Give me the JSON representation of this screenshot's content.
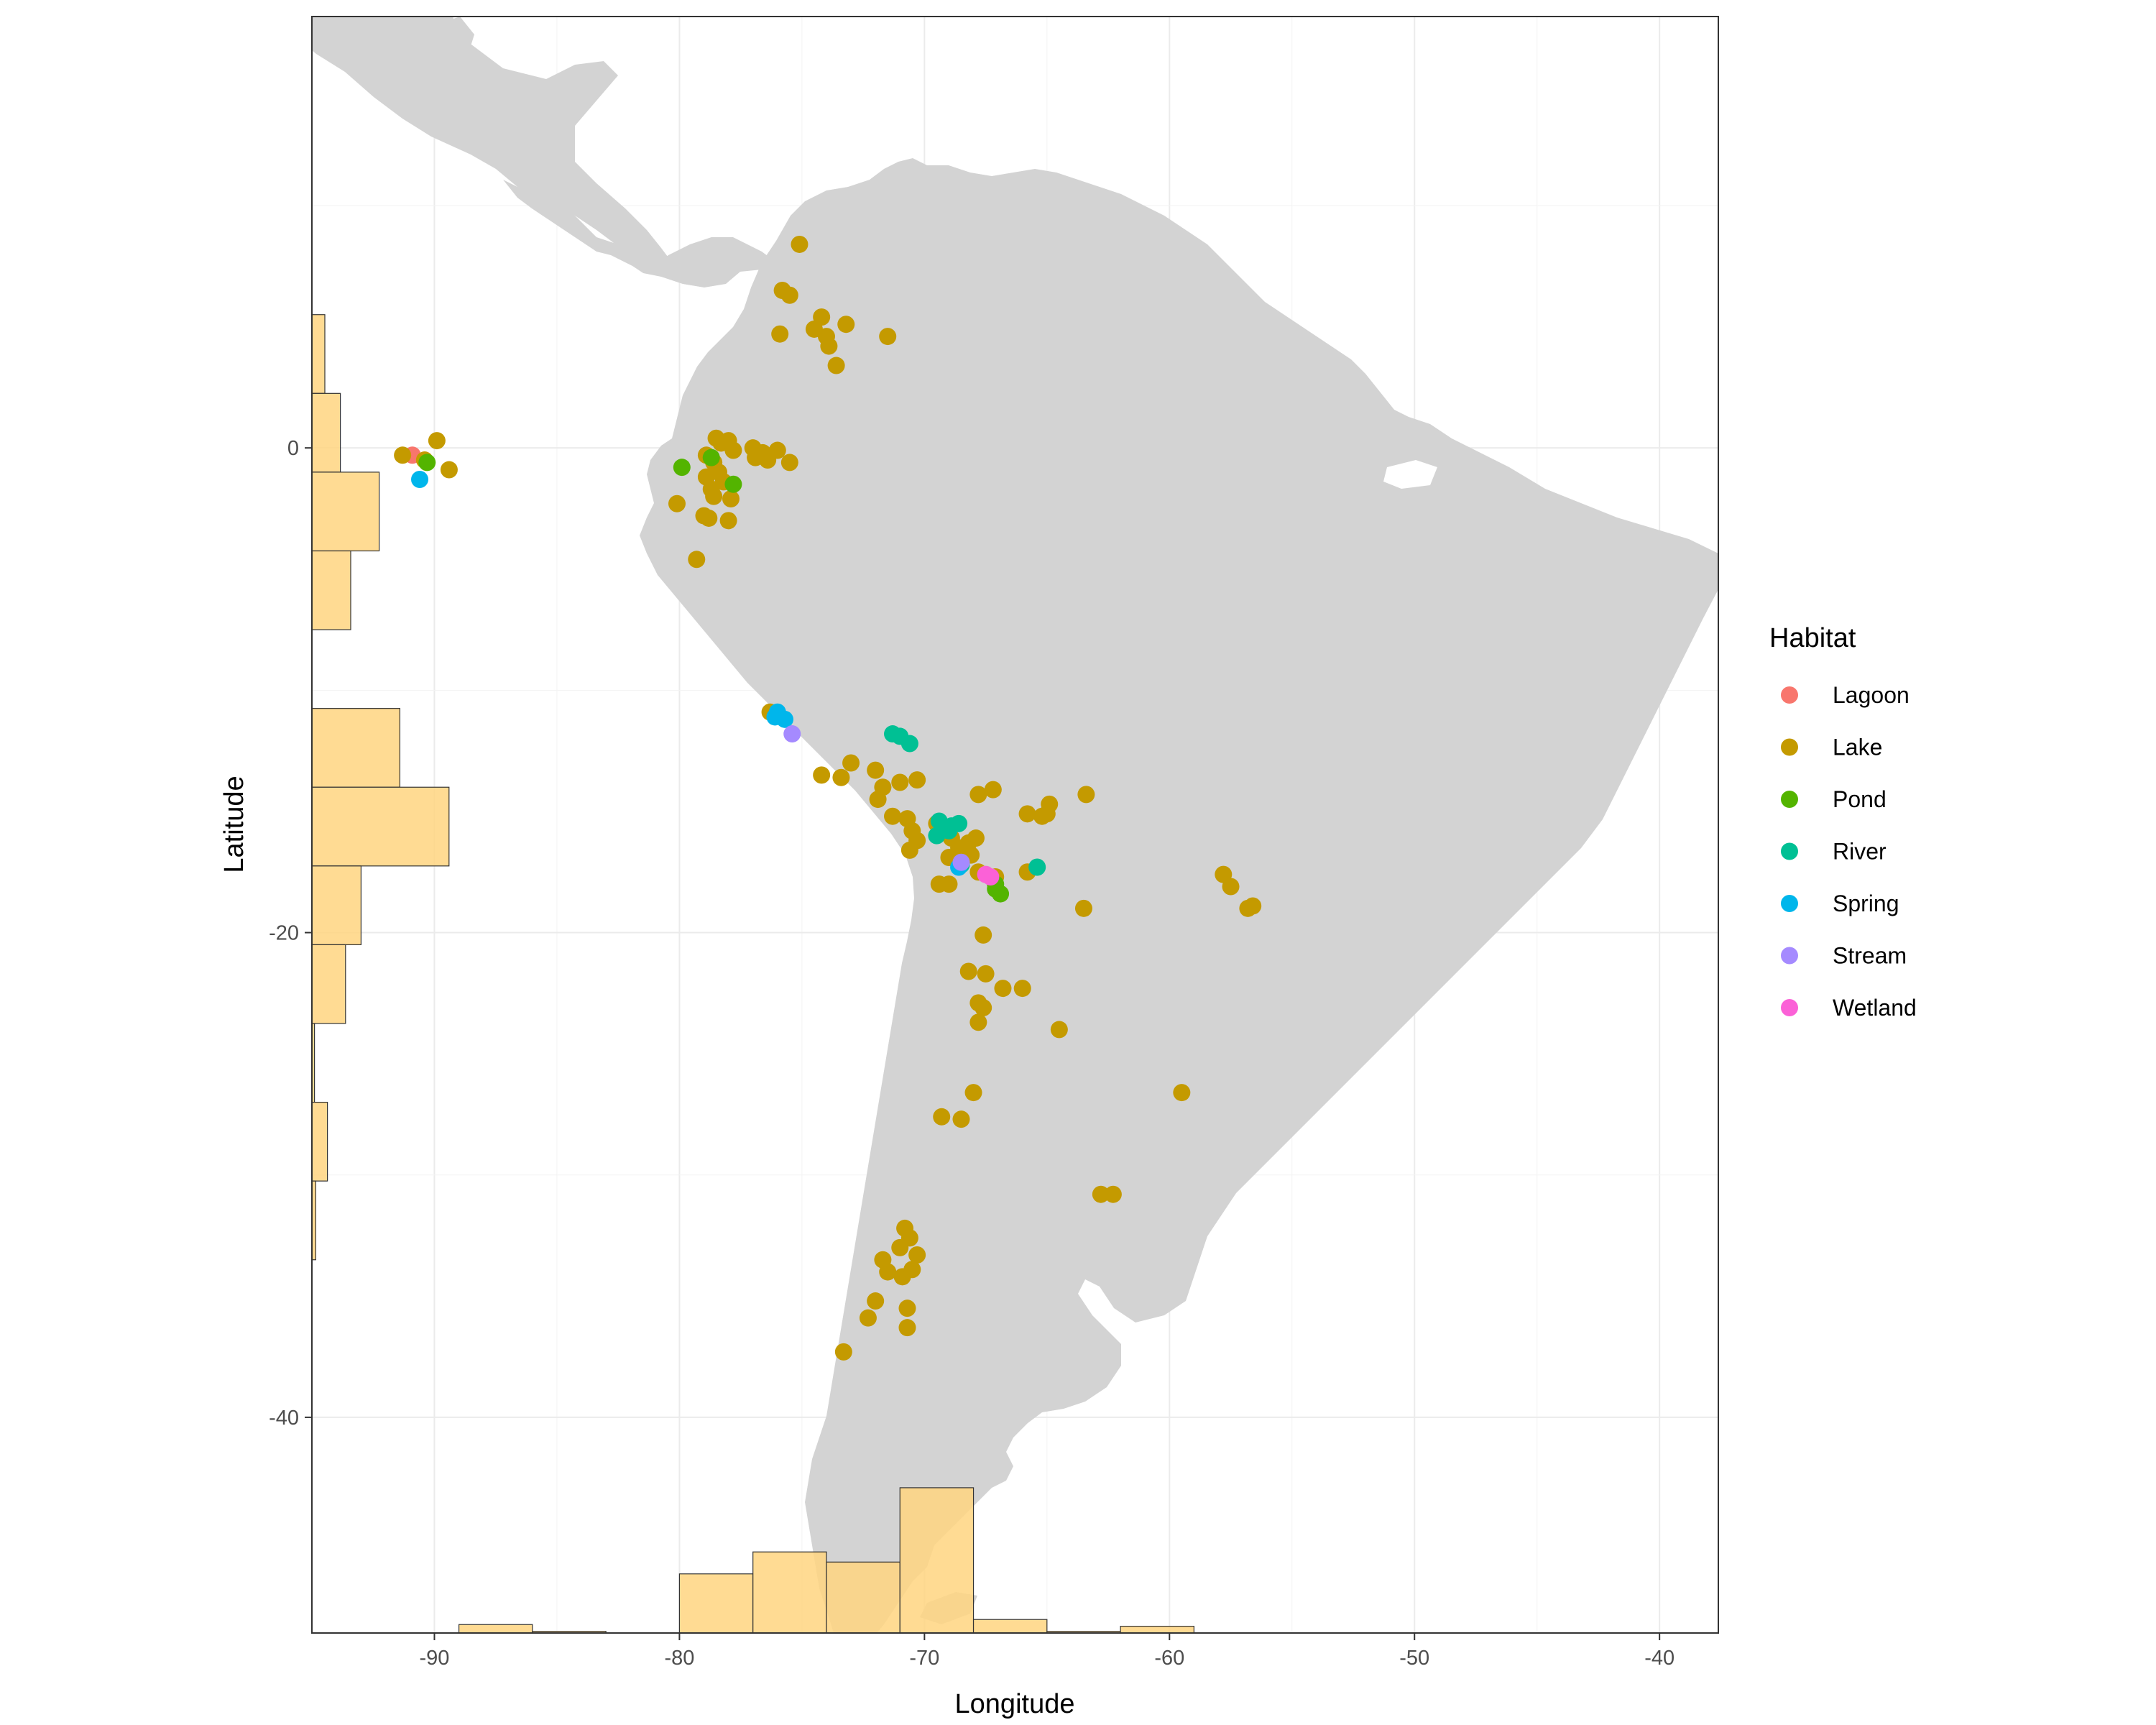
{
  "chart_data": {
    "type": "scatter",
    "title": "",
    "xlabel": "Longitude",
    "ylabel": "Latitude",
    "xlim": [
      -95,
      -37.6
    ],
    "ylim": [
      -48.9,
      17.8
    ],
    "x_ticks": [
      -90,
      -80,
      -70,
      -60,
      -50,
      -40
    ],
    "y_ticks": [
      0,
      -20,
      -40
    ],
    "x_tick_labels": [
      "-90",
      "-80",
      "-70",
      "-60",
      "-50",
      "-40"
    ],
    "y_tick_labels": [
      "0",
      "-20",
      "-40"
    ],
    "grid": true,
    "background_map": "South America and Central America landmass (light grey)",
    "legend": {
      "title": "Habitat",
      "position": "right",
      "entries": [
        {
          "name": "Lagoon",
          "color": "#F8766D"
        },
        {
          "name": "Lake",
          "color": "#C49A00"
        },
        {
          "name": "Pond",
          "color": "#53B400"
        },
        {
          "name": "River",
          "color": "#00C094"
        },
        {
          "name": "Spring",
          "color": "#00B6EB"
        },
        {
          "name": "Stream",
          "color": "#A58AFF"
        },
        {
          "name": "Wetland",
          "color": "#FB61D7"
        }
      ]
    },
    "series": [
      {
        "name": "Lagoon",
        "points": [
          [
            -90.9,
            -0.3
          ]
        ]
      },
      {
        "name": "Lake",
        "points": [
          [
            -91.3,
            -0.3
          ],
          [
            -89.9,
            0.3
          ],
          [
            -89.4,
            -0.9
          ],
          [
            -90.4,
            -0.5
          ],
          [
            -75.1,
            8.4
          ],
          [
            -75.8,
            6.5
          ],
          [
            -75.5,
            6.3
          ],
          [
            -75.9,
            4.7
          ],
          [
            -74.2,
            5.4
          ],
          [
            -74.5,
            4.9
          ],
          [
            -74.0,
            4.6
          ],
          [
            -73.2,
            5.1
          ],
          [
            -71.5,
            4.6
          ],
          [
            -73.9,
            4.2
          ],
          [
            -73.6,
            3.4
          ],
          [
            -78.5,
            0.4
          ],
          [
            -78.3,
            0.2
          ],
          [
            -78.0,
            0.3
          ],
          [
            -77.8,
            -0.1
          ],
          [
            -78.9,
            -0.3
          ],
          [
            -78.6,
            -0.6
          ],
          [
            -78.4,
            -1.0
          ],
          [
            -78.9,
            -1.2
          ],
          [
            -78.2,
            -1.4
          ],
          [
            -78.7,
            -1.7
          ],
          [
            -77.9,
            -2.1
          ],
          [
            -78.6,
            -2.0
          ],
          [
            -79.0,
            -2.8
          ],
          [
            -78.0,
            -3.0
          ],
          [
            -78.8,
            -2.9
          ],
          [
            -80.1,
            -2.3
          ],
          [
            -79.3,
            -4.6
          ],
          [
            -77.0,
            0.0
          ],
          [
            -76.6,
            -0.2
          ],
          [
            -76.0,
            -0.1
          ],
          [
            -76.4,
            -0.5
          ],
          [
            -75.5,
            -0.6
          ],
          [
            -76.9,
            -0.4
          ],
          [
            -76.3,
            -10.9
          ],
          [
            -74.2,
            -13.5
          ],
          [
            -73.4,
            -13.6
          ],
          [
            -73.0,
            -13.0
          ],
          [
            -72.0,
            -13.3
          ],
          [
            -71.7,
            -14.0
          ],
          [
            -71.0,
            -13.8
          ],
          [
            -70.3,
            -13.7
          ],
          [
            -71.9,
            -14.5
          ],
          [
            -71.3,
            -15.2
          ],
          [
            -70.7,
            -15.3
          ],
          [
            -70.5,
            -15.8
          ],
          [
            -70.3,
            -16.2
          ],
          [
            -70.6,
            -16.6
          ],
          [
            -69.5,
            -15.5
          ],
          [
            -69.2,
            -15.8
          ],
          [
            -68.9,
            -16.1
          ],
          [
            -68.6,
            -16.5
          ],
          [
            -68.2,
            -16.3
          ],
          [
            -67.9,
            -16.1
          ],
          [
            -68.1,
            -16.8
          ],
          [
            -69.0,
            -16.9
          ],
          [
            -67.8,
            -14.3
          ],
          [
            -67.2,
            -14.1
          ],
          [
            -65.8,
            -15.1
          ],
          [
            -65.2,
            -15.2
          ],
          [
            -64.9,
            -14.7
          ],
          [
            -65.0,
            -15.1
          ],
          [
            -63.4,
            -14.3
          ],
          [
            -69.4,
            -18.0
          ],
          [
            -69.0,
            -18.0
          ],
          [
            -67.8,
            -17.5
          ],
          [
            -67.1,
            -17.7
          ],
          [
            -65.8,
            -17.5
          ],
          [
            -67.6,
            -20.1
          ],
          [
            -68.2,
            -21.6
          ],
          [
            -67.5,
            -21.7
          ],
          [
            -66.0,
            -22.3
          ],
          [
            -67.8,
            -22.9
          ],
          [
            -66.8,
            -22.3
          ],
          [
            -67.6,
            -23.1
          ],
          [
            -67.8,
            -23.7
          ],
          [
            -64.5,
            -24.0
          ],
          [
            -68.0,
            -26.6
          ],
          [
            -69.3,
            -27.6
          ],
          [
            -68.5,
            -27.7
          ],
          [
            -63.5,
            -19.0
          ],
          [
            -57.8,
            -17.6
          ],
          [
            -57.5,
            -18.1
          ],
          [
            -56.8,
            -19.0
          ],
          [
            -56.6,
            -18.9
          ],
          [
            -59.5,
            -26.6
          ],
          [
            -62.8,
            -30.8
          ],
          [
            -62.3,
            -30.8
          ],
          [
            -70.8,
            -32.2
          ],
          [
            -70.6,
            -32.6
          ],
          [
            -71.0,
            -33.0
          ],
          [
            -70.3,
            -33.3
          ],
          [
            -71.7,
            -33.5
          ],
          [
            -71.5,
            -34.0
          ],
          [
            -70.9,
            -34.2
          ],
          [
            -70.5,
            -33.9
          ],
          [
            -72.0,
            -35.2
          ],
          [
            -70.7,
            -35.5
          ],
          [
            -72.3,
            -35.9
          ],
          [
            -70.7,
            -36.3
          ],
          [
            -73.3,
            -37.3
          ]
        ]
      },
      {
        "name": "Pond",
        "points": [
          [
            -90.3,
            -0.6
          ],
          [
            -79.9,
            -0.8
          ],
          [
            -78.7,
            -0.4
          ],
          [
            -77.8,
            -1.5
          ],
          [
            -67.1,
            -18.0
          ],
          [
            -66.9,
            -18.4
          ],
          [
            -67.1,
            -18.2
          ]
        ]
      },
      {
        "name": "River",
        "points": [
          [
            -71.3,
            -11.8
          ],
          [
            -71.0,
            -11.9
          ],
          [
            -70.6,
            -12.2
          ],
          [
            -69.5,
            -16.0
          ],
          [
            -69.0,
            -15.8
          ],
          [
            -68.9,
            -15.6
          ],
          [
            -68.6,
            -15.5
          ],
          [
            -69.4,
            -15.4
          ],
          [
            -68.5,
            -17.2
          ],
          [
            -65.4,
            -17.3
          ]
        ]
      },
      {
        "name": "Spring",
        "points": [
          [
            -90.6,
            -1.3
          ],
          [
            -76.0,
            -10.9
          ],
          [
            -75.7,
            -11.2
          ],
          [
            -76.1,
            -11.1
          ],
          [
            -68.6,
            -17.3
          ]
        ]
      },
      {
        "name": "Stream",
        "points": [
          [
            -75.4,
            -11.8
          ],
          [
            -68.5,
            -17.1
          ]
        ]
      },
      {
        "name": "Wetland",
        "points": [
          [
            -67.5,
            -17.6
          ],
          [
            -67.3,
            -17.7
          ]
        ]
      }
    ],
    "marginal_histograms": {
      "fill": "#FFD580",
      "x_hist": {
        "axis": "Longitude",
        "bins": [
          [
            -89,
            -86,
            0.5
          ],
          [
            -86,
            -83,
            0.1
          ],
          [
            -83,
            -80,
            0
          ],
          [
            -80,
            -77,
            3.5
          ],
          [
            -77,
            -74,
            4.8
          ],
          [
            -74,
            -71,
            4.2
          ],
          [
            -71,
            -68,
            8.6
          ],
          [
            -68,
            -65,
            0.8
          ],
          [
            -65,
            -62,
            0.1
          ],
          [
            -62,
            -59,
            0.4
          ]
        ]
      },
      "y_hist": {
        "axis": "Latitude",
        "bins": [
          [
            5.5,
            2.25,
            0.5
          ],
          [
            2.25,
            -1,
            1.1
          ],
          [
            -1,
            -4.25,
            2.6
          ],
          [
            -4.25,
            -7.5,
            1.5
          ],
          [
            -7.5,
            -10.75,
            0
          ],
          [
            -10.75,
            -14,
            3.4
          ],
          [
            -14,
            -17.25,
            5.3
          ],
          [
            -17.25,
            -20.5,
            1.9
          ],
          [
            -20.5,
            -23.75,
            1.3
          ],
          [
            -23.75,
            -27,
            0.1
          ],
          [
            -27,
            -30.25,
            0.6
          ],
          [
            -30.25,
            -33.5,
            0.15
          ]
        ]
      }
    }
  }
}
